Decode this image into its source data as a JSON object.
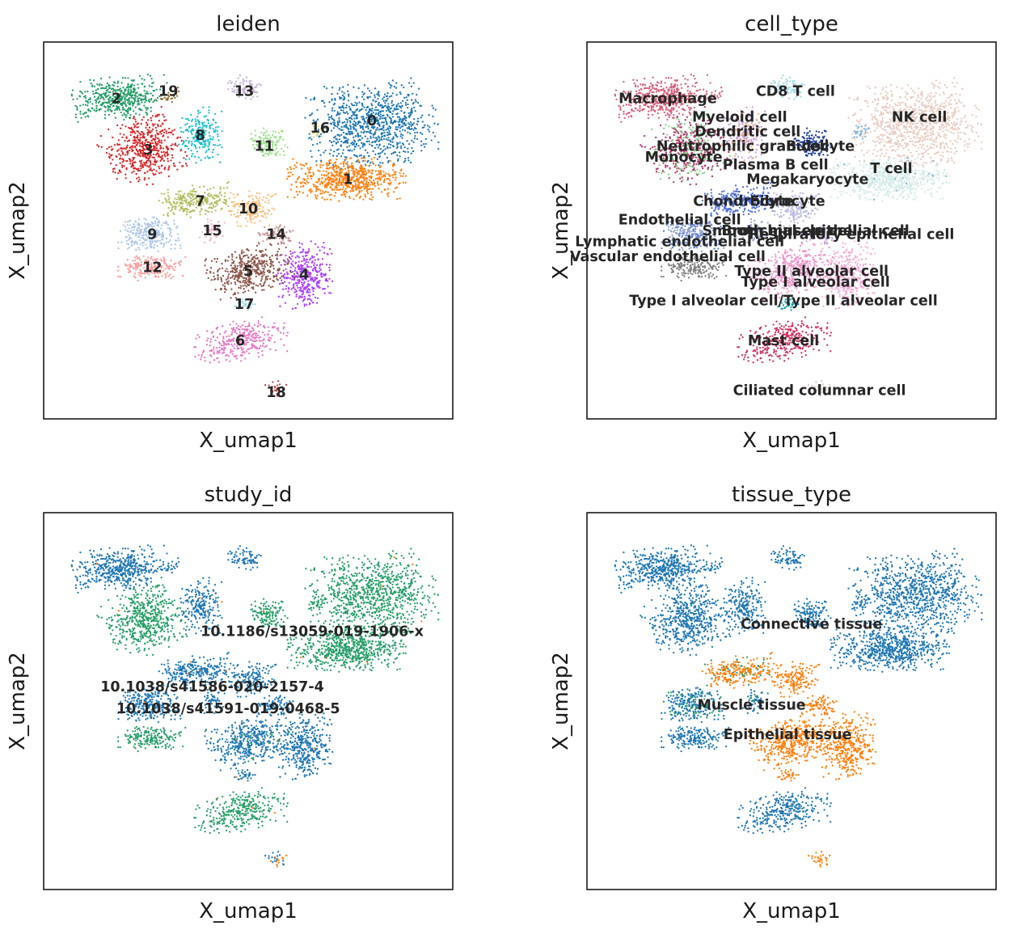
{
  "chart_data": [
    {
      "type": "scatter",
      "title": "leiden",
      "xlabel": "X_umap1",
      "ylabel": "X_umap2",
      "legend": "on data",
      "groups": [
        {
          "name": "0",
          "color": "#1f77b4",
          "x": 0.81,
          "y": 0.8
        },
        {
          "name": "1",
          "color": "#ff7f0e",
          "x": 0.75,
          "y": 0.64
        },
        {
          "name": "2",
          "color": "#279e68",
          "x": 0.17,
          "y": 0.86
        },
        {
          "name": "3",
          "color": "#d62728",
          "x": 0.25,
          "y": 0.72
        },
        {
          "name": "4",
          "color": "#aa40fc",
          "x": 0.64,
          "y": 0.38
        },
        {
          "name": "5",
          "color": "#8c564b",
          "x": 0.5,
          "y": 0.39
        },
        {
          "name": "6",
          "color": "#e377c2",
          "x": 0.48,
          "y": 0.2
        },
        {
          "name": "7",
          "color": "#b5bd61",
          "x": 0.38,
          "y": 0.58
        },
        {
          "name": "8",
          "color": "#17becf",
          "x": 0.38,
          "y": 0.76
        },
        {
          "name": "9",
          "color": "#aec7e8",
          "x": 0.26,
          "y": 0.49
        },
        {
          "name": "10",
          "color": "#ffbb78",
          "x": 0.5,
          "y": 0.56
        },
        {
          "name": "11",
          "color": "#98df8a",
          "x": 0.54,
          "y": 0.73
        },
        {
          "name": "12",
          "color": "#ff9896",
          "x": 0.26,
          "y": 0.4
        },
        {
          "name": "13",
          "color": "#c5b0d5",
          "x": 0.49,
          "y": 0.88
        },
        {
          "name": "14",
          "color": "#c49c94",
          "x": 0.57,
          "y": 0.49
        },
        {
          "name": "15",
          "color": "#f7b6d2",
          "x": 0.41,
          "y": 0.5
        },
        {
          "name": "16",
          "color": "#dbdb8d",
          "x": 0.68,
          "y": 0.78
        },
        {
          "name": "17",
          "color": "#9edae5",
          "x": 0.49,
          "y": 0.3
        },
        {
          "name": "18",
          "color": "#ad494a",
          "x": 0.57,
          "y": 0.06
        },
        {
          "name": "19",
          "color": "#8c6d31",
          "x": 0.3,
          "y": 0.88
        }
      ]
    },
    {
      "type": "scatter",
      "title": "cell_type",
      "xlabel": "X_umap1",
      "ylabel": "X_umap2",
      "legend": "on data",
      "groups": [
        {
          "name": "Macrophage",
          "color": "#d5607a",
          "x": 0.19,
          "y": 0.86
        },
        {
          "name": "CD8 T cell",
          "color": "#9edae5",
          "x": 0.52,
          "y": 0.88
        },
        {
          "name": "NK cell",
          "color": "#e8cbbf",
          "x": 0.82,
          "y": 0.81
        },
        {
          "name": "Myeloid cell",
          "color": "#b5336b",
          "x": 0.4,
          "y": 0.81
        },
        {
          "name": "Dendritic cell",
          "color": "#c9a0d2",
          "x": 0.4,
          "y": 0.77
        },
        {
          "name": "B cell",
          "color": "#1f3d9c",
          "x": 0.54,
          "y": 0.73
        },
        {
          "name": "Neutrophilic granulocyte",
          "color": "#f5b37e",
          "x": 0.4,
          "y": 0.73
        },
        {
          "name": "Monocyte",
          "color": "#88d08a",
          "x": 0.23,
          "y": 0.7
        },
        {
          "name": "Plasma B cell",
          "color": "#17a2a8",
          "x": 0.41,
          "y": 0.67
        },
        {
          "name": "T cell",
          "color": "#d4ebe8",
          "x": 0.75,
          "y": 0.67
        },
        {
          "name": "Megakaryocyte",
          "color": "#7fb3d5",
          "x": 0.53,
          "y": 0.64
        },
        {
          "name": "Chondrocyte",
          "color": "#4f6fd6",
          "x": 0.38,
          "y": 0.58
        },
        {
          "name": "Fibrocyte",
          "color": "#b8b8e0",
          "x": 0.5,
          "y": 0.58
        },
        {
          "name": "Endothelial cell",
          "color": "#5a7be0",
          "x": 0.2,
          "y": 0.51
        },
        {
          "name": "Smooth muscle cell",
          "color": "#9ca9d8",
          "x": 0.45,
          "y": 0.5
        },
        {
          "name": "Bronchial epithelial cell",
          "color": "#c7a6df",
          "x": 0.55,
          "y": 0.5
        },
        {
          "name": "Respiratory epithelial cell",
          "color": "#e6b6d6",
          "x": 0.65,
          "y": 0.48
        },
        {
          "name": "Lymphatic endothelial cell",
          "color": "#8fa3c9",
          "x": 0.2,
          "y": 0.47
        },
        {
          "name": "Vascular endothelial cell",
          "color": "#7f7f7f",
          "x": 0.2,
          "y": 0.43
        },
        {
          "name": "Type II alveolar cell",
          "color": "#ee8fc8",
          "x": 0.55,
          "y": 0.39
        },
        {
          "name": "Type I alveolar cell",
          "color": "#f3a9d4",
          "x": 0.55,
          "y": 0.36
        },
        {
          "name": "Type I alveolar cell/Type II alveolar cell",
          "color": "#f6c2de",
          "x": 0.48,
          "y": 0.32
        },
        {
          "name": "Mast cell",
          "color": "#cf2f5f",
          "x": 0.48,
          "y": 0.2
        },
        {
          "name": "Ciliated columnar cell",
          "color": "#d9c3c3",
          "x": 0.57,
          "y": 0.06
        }
      ]
    },
    {
      "type": "scatter",
      "title": "study_id",
      "xlabel": "X_umap1",
      "ylabel": "X_umap2",
      "legend": "on data",
      "groups": [
        {
          "name": "10.1186/s13059-019-1906-x",
          "color": "#279e68"
        },
        {
          "name": "10.1038/s41586-020-2157-4",
          "color": "#1f77b4"
        },
        {
          "name": "10.1038/s41591-019-0468-5",
          "color": "#ff7f0e"
        }
      ]
    },
    {
      "type": "scatter",
      "title": "tissue_type",
      "xlabel": "X_umap1",
      "ylabel": "X_umap2",
      "legend": "on data",
      "groups": [
        {
          "name": "Connective tissue",
          "color": "#1f77b4"
        },
        {
          "name": "Muscle tissue",
          "color": "#279e68"
        },
        {
          "name": "Epithelial tissue",
          "color": "#ff7f0e"
        }
      ]
    }
  ]
}
